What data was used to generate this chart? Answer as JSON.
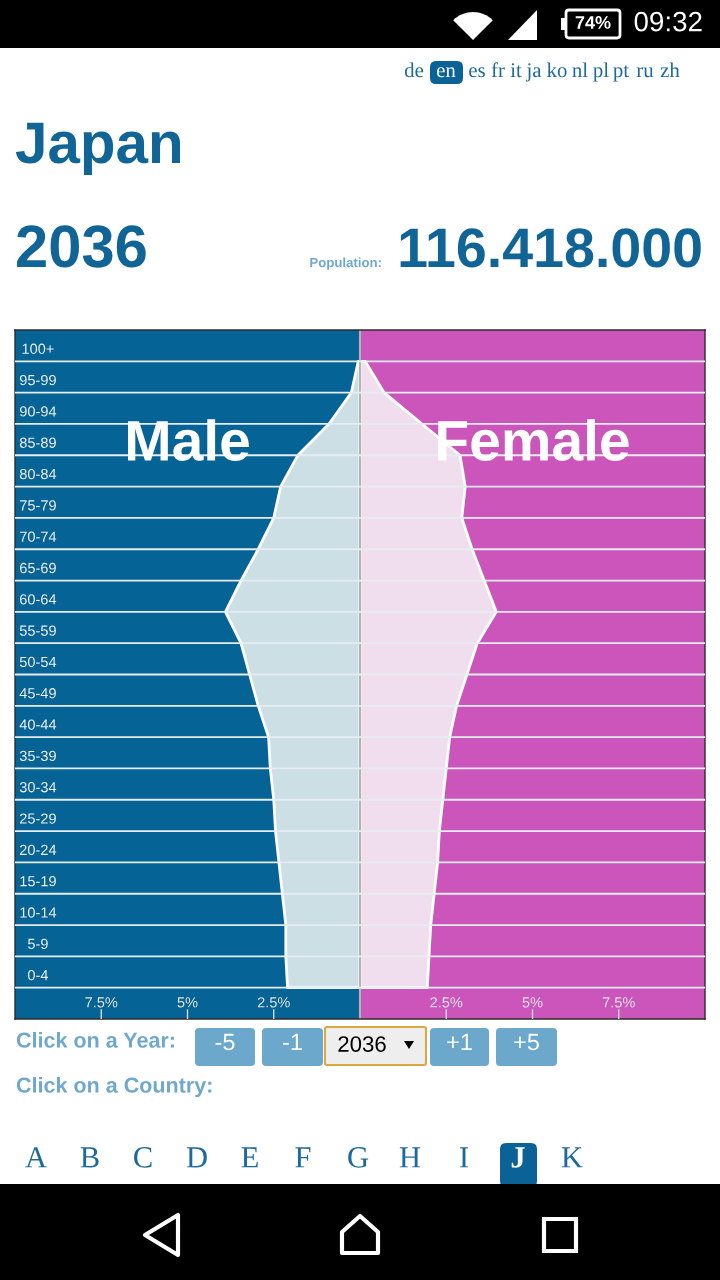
{
  "chart_data": {
    "type": "area",
    "orientation": "horizontal",
    "title": "Japan",
    "subtitle": "2036",
    "categories": [
      "100+",
      "95-99",
      "90-94",
      "85-89",
      "80-84",
      "75-79",
      "70-74",
      "65-69",
      "60-64",
      "55-59",
      "50-54",
      "45-49",
      "40-44",
      "35-39",
      "30-34",
      "25-29",
      "20-24",
      "15-19",
      "10-14",
      "5-9",
      "0-4"
    ],
    "series": [
      {
        "name": "Male",
        "color": "#cbdfe5",
        "values": [
          -0.05,
          -0.25,
          -0.9,
          -1.8,
          -2.3,
          -2.5,
          -2.95,
          -3.45,
          -3.9,
          -3.45,
          -3.2,
          -2.95,
          -2.65,
          -2.6,
          -2.5,
          -2.45,
          -2.35,
          -2.25,
          -2.15,
          -2.15,
          -2.1
        ]
      },
      {
        "name": "Female",
        "color": "#f0deee",
        "values": [
          0.15,
          0.7,
          1.8,
          2.9,
          3.05,
          2.95,
          3.25,
          3.6,
          3.95,
          3.4,
          3.1,
          2.8,
          2.6,
          2.5,
          2.4,
          2.3,
          2.25,
          2.15,
          2.05,
          2.0,
          1.95
        ]
      }
    ],
    "xlim": [
      -10,
      10
    ],
    "xticks": [
      {
        "value": -7.5,
        "label": "7.5%"
      },
      {
        "value": -5,
        "label": "5%"
      },
      {
        "value": -2.5,
        "label": "2.5%"
      },
      {
        "value": 2.5,
        "label": "2.5%"
      },
      {
        "value": 5,
        "label": "5%"
      },
      {
        "value": 7.5,
        "label": "7.5%"
      }
    ],
    "bands": [
      {
        "axis": "x",
        "from": -10,
        "to": 0,
        "color": "#066396"
      },
      {
        "axis": "x",
        "from": 0,
        "to": 10,
        "color": "#cc55bb"
      }
    ],
    "ref_lines": [
      {
        "axis": "x",
        "value": 0,
        "color": "#b4b4b4"
      }
    ],
    "grid": "y",
    "annotations": [
      "de",
      "en",
      "es",
      "fr",
      "it",
      "ja",
      "ko",
      "nl",
      "pl",
      "pt",
      "ru",
      "zh",
      "Population:",
      "116.418.000",
      "Click on a Year:",
      "-5",
      "-1",
      "2036",
      "+1",
      "+5",
      "Click on a Country:",
      "A",
      "B",
      "C",
      "D",
      "E",
      "F",
      "G",
      "H",
      "I",
      "J",
      "K",
      "74%",
      "09:32"
    ]
  }
}
